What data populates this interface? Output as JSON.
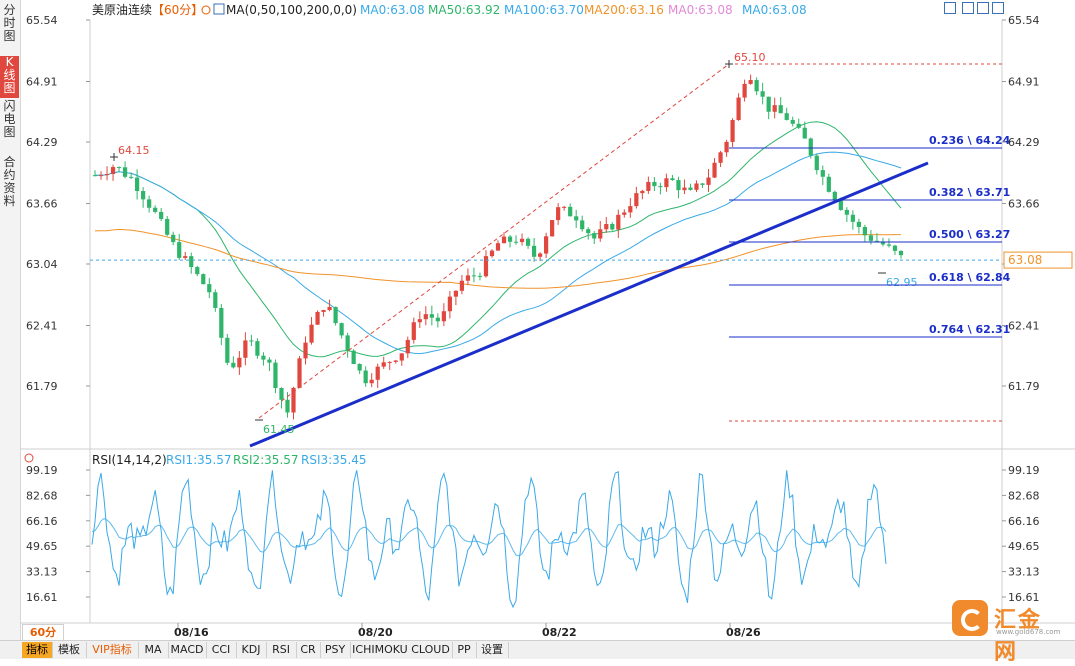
{
  "left_tabs": [
    "分时图",
    "K线图",
    "闪电图",
    "合约资料"
  ],
  "left_active": 1,
  "header": {
    "symbol": "美原油连续",
    "interval": "【60分】",
    "ma_params": "MA(0,50,100,200,0,0)",
    "ma_values": [
      {
        "label": "MA0:63.08",
        "color": "#3aa9e8"
      },
      {
        "label": "MA50:63.92",
        "color": "#2fb56a"
      },
      {
        "label": "MA100:63.70",
        "color": "#3aa9e8"
      },
      {
        "label": "MA200:63.16",
        "color": "#f0932b"
      },
      {
        "label": "MA0:63.08",
        "color": "#e08ad6"
      },
      {
        "label": "MA0:63.08",
        "color": "#3aa9e8"
      }
    ]
  },
  "rsi_header": {
    "label": "RSI(14,14,2)",
    "rsi1": "RSI1:35.57",
    "rsi2": "RSI2:35.57",
    "rsi3": "RSI3:35.45"
  },
  "price_axis": {
    "ticks": [
      "65.54",
      "64.91",
      "64.29",
      "63.66",
      "63.04",
      "62.41",
      "61.79"
    ],
    "current": "63.08"
  },
  "rsi_axis": {
    "ticks": [
      "99.19",
      "82.68",
      "66.16",
      "49.65",
      "33.13",
      "16.61"
    ]
  },
  "date_axis": [
    "08/16",
    "08/20",
    "08/22",
    "08/26"
  ],
  "annotations": {
    "high": "65.10",
    "low": "61.45",
    "left_high": "64.15",
    "last_low": "62.95"
  },
  "fibonacci": [
    {
      "label": "0.236 \\ 64.24"
    },
    {
      "label": "0.382 \\ 63.71"
    },
    {
      "label": "0.500 \\ 63.27"
    },
    {
      "label": "0.618 \\ 62.84"
    },
    {
      "label": "0.764 \\ 62.31"
    }
  ],
  "bottom_tabs": [
    "指标",
    "模板",
    "VIP指标",
    "MA",
    "MACD",
    "CCI",
    "KDJ",
    "RSI",
    "CR",
    "PSY",
    "ICHIMOKU CLOUD",
    "PP",
    "设置"
  ],
  "interval_box": "60分",
  "logo": {
    "name": "汇金网",
    "url": "www.gold678.com"
  },
  "colors": {
    "up": "#e0473e",
    "down": "#2fb56a",
    "trend": "#1b2ec9",
    "fib": "#1b2ec9",
    "ma50": "#2fb56a",
    "ma100": "#3aa9e8",
    "ma200": "#f0932b",
    "rsi": "#3aa9e8"
  },
  "chart_data": {
    "type": "candlestick",
    "title": "美原油连续 60分",
    "yaxis": {
      "ticks": [
        65.54,
        64.91,
        64.29,
        63.66,
        63.04,
        62.41,
        61.79
      ],
      "range": [
        61.3,
        65.6
      ]
    },
    "key_points": [
      {
        "label": "high",
        "value": 65.1
      },
      {
        "label": "low",
        "value": 61.45
      },
      {
        "label": "left_high",
        "value": 64.15
      },
      {
        "label": "last_low",
        "value": 62.95
      },
      {
        "label": "current",
        "value": 63.08
      }
    ],
    "fib_levels": [
      64.24,
      63.71,
      63.27,
      62.84,
      62.31
    ],
    "closes_approx": [
      63.95,
      64.05,
      63.9,
      63.6,
      63.25,
      63.0,
      62.75,
      61.95,
      62.25,
      62.05,
      61.5,
      62.3,
      62.65,
      62.25,
      61.85,
      62.0,
      62.15,
      62.55,
      62.45,
      62.85,
      62.95,
      63.25,
      63.3,
      63.1,
      63.6,
      63.55,
      63.3,
      63.45,
      63.7,
      63.85,
      63.9,
      63.75,
      63.95,
      64.35,
      65.05,
      64.65,
      64.55,
      64.3,
      63.9,
      63.6,
      63.35,
      63.25,
      63.1
    ],
    "rsi": {
      "latest": [
        35.57,
        35.57,
        35.45
      ],
      "ticks": [
        99.19,
        82.68,
        66.16,
        49.65,
        33.13,
        16.61
      ]
    }
  }
}
